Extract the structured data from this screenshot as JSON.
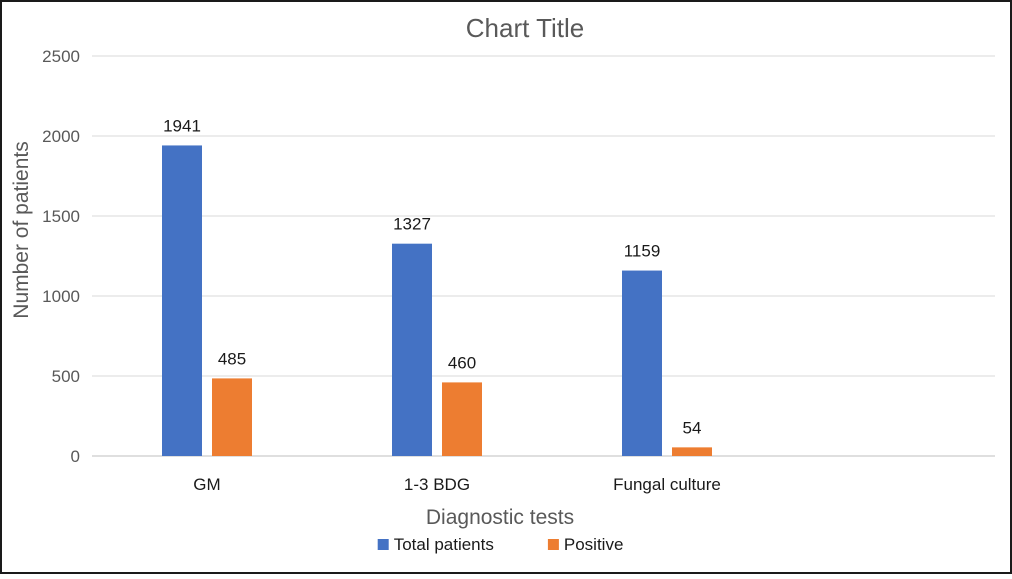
{
  "chart_data": {
    "type": "bar",
    "title": "Chart Title",
    "xlabel": "Diagnostic tests",
    "ylabel": "Number of patients",
    "categories": [
      "GM",
      "1-3 BDG",
      "Fungal culture"
    ],
    "series": [
      {
        "name": "Total patients",
        "values": [
          1941,
          1327,
          1159
        ],
        "color": "#4472C4"
      },
      {
        "name": "Positive",
        "values": [
          485,
          460,
          54
        ],
        "color": "#ED7D31"
      }
    ],
    "ylim": [
      0,
      2500
    ],
    "yticks": [
      0,
      500,
      1000,
      1500,
      2000,
      2500
    ],
    "grid": true,
    "legend": "bottom"
  }
}
